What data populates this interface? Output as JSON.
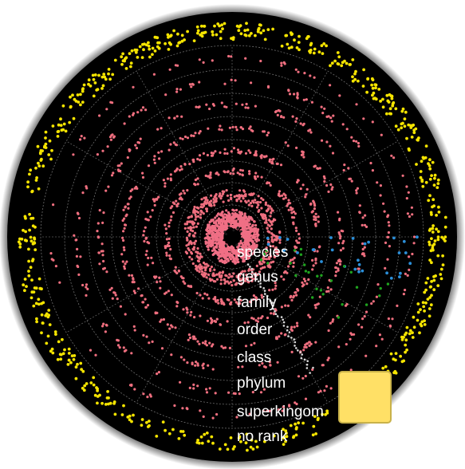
{
  "chart_data": {
    "type": "scatter",
    "coordinate_system": "polar",
    "grid": true,
    "background": "#000000",
    "rank_labels": [
      "species",
      "genus",
      "family",
      "order",
      "class",
      "phylum",
      "superkingom",
      "no rank"
    ],
    "series": [
      {
        "name": "no rank",
        "ring": 9,
        "color": "#f5e400",
        "count": 650
      },
      {
        "name": "superkingom",
        "ring": 8,
        "color": "#ef6f7f",
        "count": 110
      },
      {
        "name": "phylum",
        "ring": 7,
        "color": "#ef6f7f",
        "count": 150
      },
      {
        "name": "class",
        "ring": 6,
        "color": "#ef6f7f",
        "count": 170
      },
      {
        "name": "order",
        "ring": 5,
        "color": "#ef6f7f",
        "count": 200
      },
      {
        "name": "family",
        "ring": 4,
        "color": "#ef6f7f",
        "count": 200
      },
      {
        "name": "genus",
        "ring": 3,
        "color": "#ef6f7f",
        "count": 190
      },
      {
        "name": "species",
        "ring": 2,
        "color": "#ef6f7f",
        "count": 420
      },
      {
        "name": "core",
        "ring": 1,
        "color": "#f06f85",
        "count": 900
      }
    ],
    "highlight_series": [
      {
        "color": "#2b8fd9",
        "count": 30
      },
      {
        "color": "#1fa31f",
        "count": 28
      },
      {
        "color": "#d9d9d9",
        "count": 45
      }
    ]
  },
  "legend_swatch_color": "#ffe066"
}
